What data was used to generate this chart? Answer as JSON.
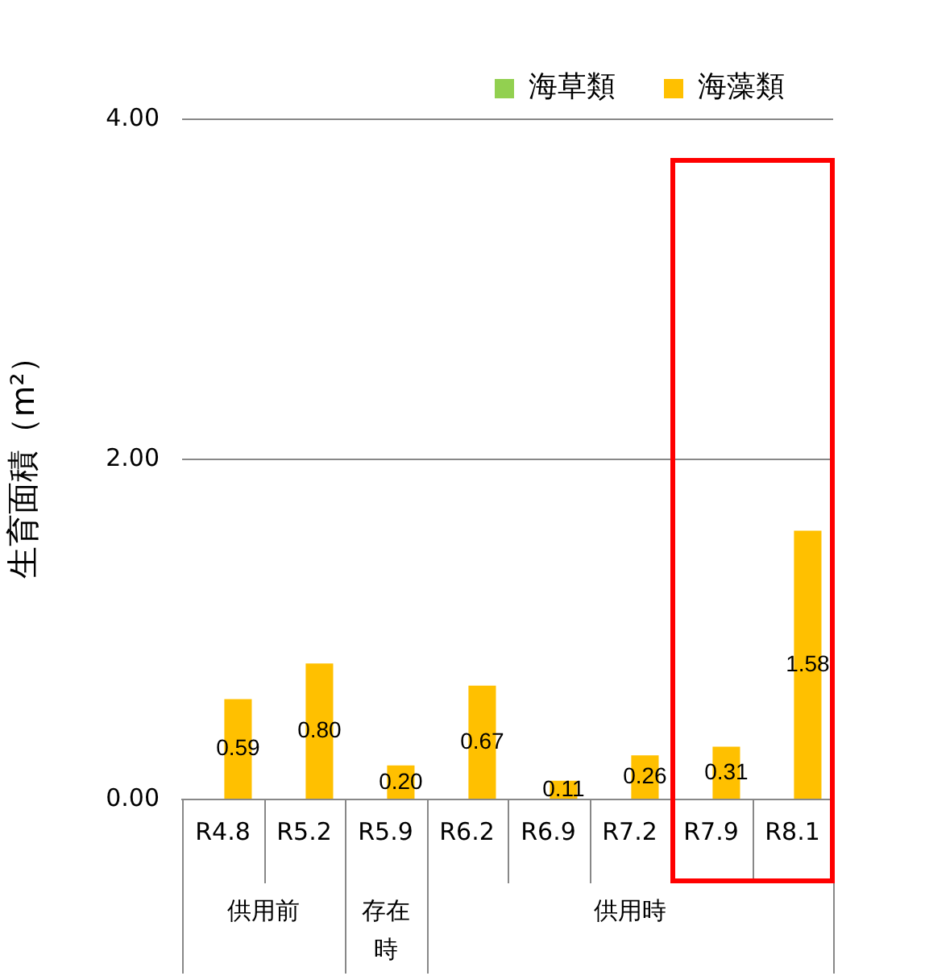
{
  "chart_data": {
    "type": "bar",
    "ylabel": "生育面積（m²）",
    "categories": [
      "R4.8",
      "R5.2",
      "R5.9",
      "R6.2",
      "R6.9",
      "R7.2",
      "R7.9",
      "R8.1"
    ],
    "series": [
      {
        "name": "海草類",
        "color": "#92d050",
        "values": [
          null,
          null,
          null,
          null,
          null,
          null,
          null,
          null
        ]
      },
      {
        "name": "海藻類",
        "color": "#ffc000",
        "values": [
          0.59,
          0.8,
          0.2,
          0.67,
          0.11,
          0.26,
          0.31,
          1.58
        ],
        "value_labels": [
          "0.59",
          "0.80",
          "0.20",
          "0.67",
          "0.11",
          "0.26",
          "0.31",
          "1.58"
        ]
      }
    ],
    "ylim": [
      0,
      4
    ],
    "yticks": [
      {
        "value": 0,
        "label": "0.00"
      },
      {
        "value": 2,
        "label": "2.00"
      },
      {
        "value": 4,
        "label": "4.00"
      }
    ],
    "grid": "y",
    "legend": "top right",
    "annotations": [
      "供用前",
      "存在時",
      "供用時"
    ]
  }
}
